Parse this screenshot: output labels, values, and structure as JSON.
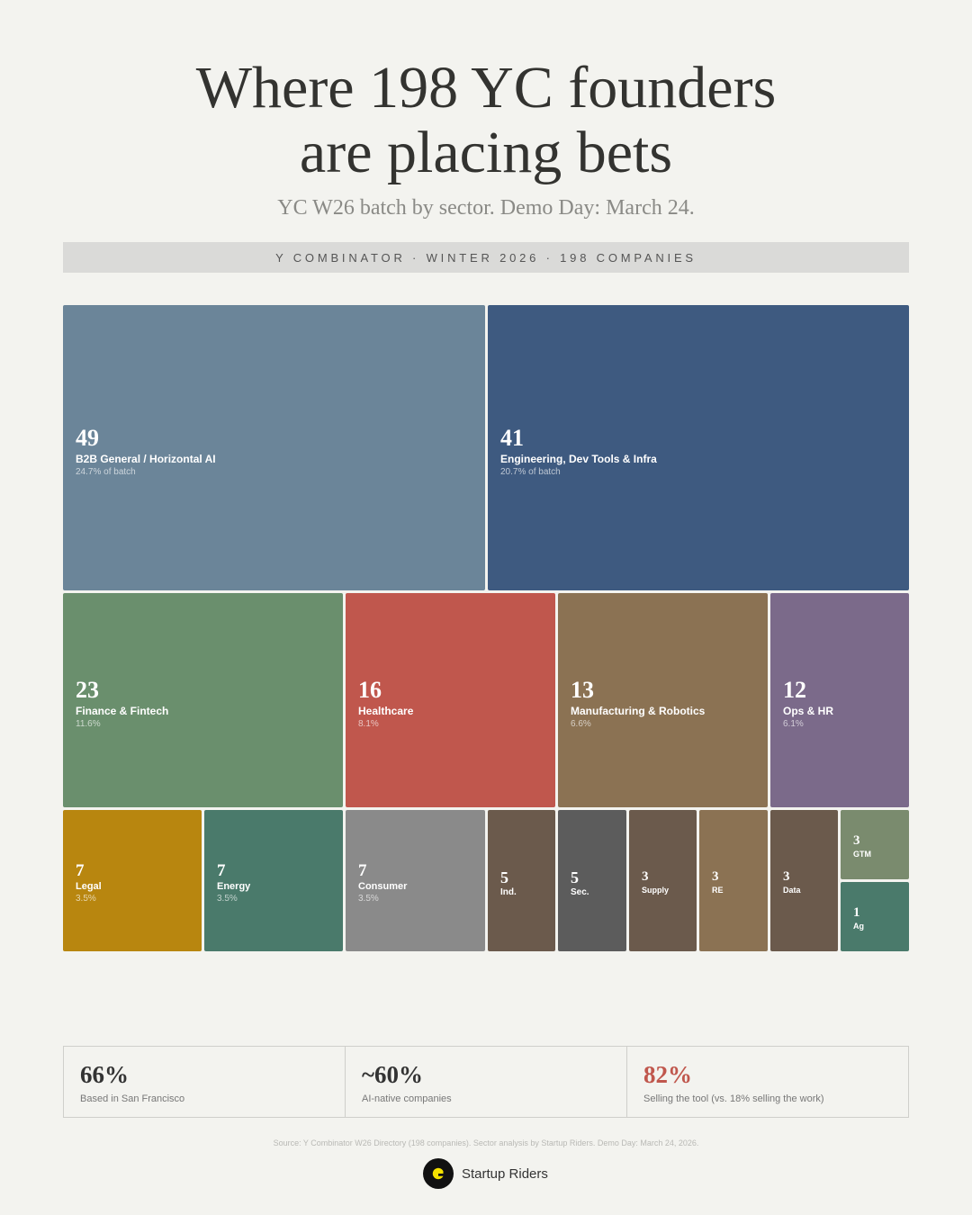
{
  "header": {
    "title_line1": "Where 198 YC founders",
    "title_line2": "are placing bets",
    "subtitle": "YC W26 batch by sector. Demo Day: March 24.",
    "banner": "Y COMBINATOR · WINTER 2026 · 198 COMPANIES"
  },
  "chart_data": {
    "type": "treemap",
    "total": 198,
    "series": [
      {
        "name": "B2B General / Horizontal AI",
        "value": 49,
        "pct_label": "24.7% of batch",
        "color": "#6b8599"
      },
      {
        "name": "Engineering, Dev Tools & Infra",
        "value": 41,
        "pct_label": "20.7% of batch",
        "color": "#3e5a80"
      },
      {
        "name": "Finance & Fintech",
        "value": 23,
        "pct_label": "11.6%",
        "color": "#6a8f6d"
      },
      {
        "name": "Healthcare",
        "value": 16,
        "pct_label": "8.1%",
        "color": "#c0574d"
      },
      {
        "name": "Manufacturing & Robotics",
        "value": 13,
        "pct_label": "6.6%",
        "color": "#8b7253"
      },
      {
        "name": "Ops & HR",
        "value": 12,
        "pct_label": "6.1%",
        "color": "#7b6a8a"
      },
      {
        "name": "Legal",
        "value": 7,
        "pct_label": "3.5%",
        "color": "#b8860f"
      },
      {
        "name": "Energy",
        "value": 7,
        "pct_label": "3.5%",
        "color": "#4a7a6b"
      },
      {
        "name": "Consumer",
        "value": 7,
        "pct_label": "3.5%",
        "color": "#8a8a8a"
      },
      {
        "name": "Ind.",
        "value": 5,
        "pct_label": "",
        "color": "#6b5a4c"
      },
      {
        "name": "Sec.",
        "value": 5,
        "pct_label": "",
        "color": "#5c5c5c"
      },
      {
        "name": "Supply",
        "value": 3,
        "pct_label": "",
        "color": "#6b5a4c"
      },
      {
        "name": "RE",
        "value": 3,
        "pct_label": "",
        "color": "#8b7253"
      },
      {
        "name": "Data",
        "value": 3,
        "pct_label": "",
        "color": "#6b5a4c"
      },
      {
        "name": "GTM",
        "value": 3,
        "pct_label": "",
        "color": "#7a8b6e"
      },
      {
        "name": "Ag",
        "value": 1,
        "pct_label": "",
        "color": "#4a7a6b"
      }
    ]
  },
  "stats": [
    {
      "value": "66%",
      "label": "Based in San Francisco",
      "color": "#333333"
    },
    {
      "value": "~60%",
      "label": "AI-native companies",
      "color": "#333333"
    },
    {
      "value": "82%",
      "label": "Selling the tool (vs. 18% selling the work)",
      "color": "#c0574d"
    }
  ],
  "footer": {
    "source": "Source: Y Combinator W26 Directory (198 companies). Sector analysis by Startup Riders. Demo Day: March 24, 2026.",
    "brand": "Startup Riders",
    "logo_icon": "startup-riders-logo-icon",
    "logo_color": "#f5e100"
  }
}
